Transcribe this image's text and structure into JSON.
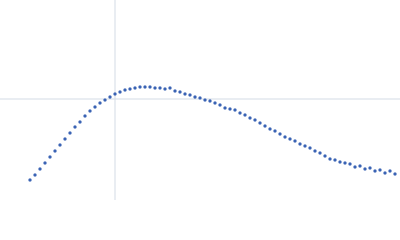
{
  "chart_data": {
    "type": "scatter",
    "x": [
      30,
      35,
      40,
      45,
      50,
      55,
      60,
      65,
      70,
      75,
      80,
      85,
      90,
      95,
      100,
      105,
      110,
      115,
      120,
      125,
      130,
      135,
      140,
      145,
      150,
      155,
      160,
      165,
      170,
      175,
      180,
      185,
      190,
      195,
      200,
      205,
      210,
      215,
      220,
      225,
      230,
      235,
      240,
      245,
      250,
      255,
      260,
      265,
      270,
      275,
      280,
      285,
      290,
      295,
      300,
      305,
      310,
      315,
      320,
      325,
      330,
      335,
      340,
      345,
      350,
      355,
      360,
      365,
      370,
      375,
      380,
      385,
      390,
      395
    ],
    "values": [
      20,
      25,
      31,
      37,
      43,
      49,
      55,
      61,
      67,
      73,
      78,
      84,
      89,
      93,
      97,
      100,
      103,
      106,
      108,
      110,
      111,
      112,
      113,
      113,
      113,
      112,
      112,
      111,
      112,
      109,
      108,
      106,
      105,
      103,
      102,
      100,
      99,
      97,
      95,
      92,
      91,
      90,
      87,
      85,
      82,
      80,
      77,
      74,
      71,
      69,
      66,
      63,
      61,
      59,
      56,
      54,
      52,
      49,
      47,
      44,
      41,
      40,
      38,
      37,
      36,
      33,
      34,
      31,
      32,
      29,
      30,
      27,
      29,
      26
    ],
    "color": "#3a63b4",
    "xlim": [
      0,
      400
    ],
    "ylim": [
      0,
      200
    ],
    "xticks": [
      115
    ],
    "yticks": [
      101
    ],
    "grid": true
  }
}
